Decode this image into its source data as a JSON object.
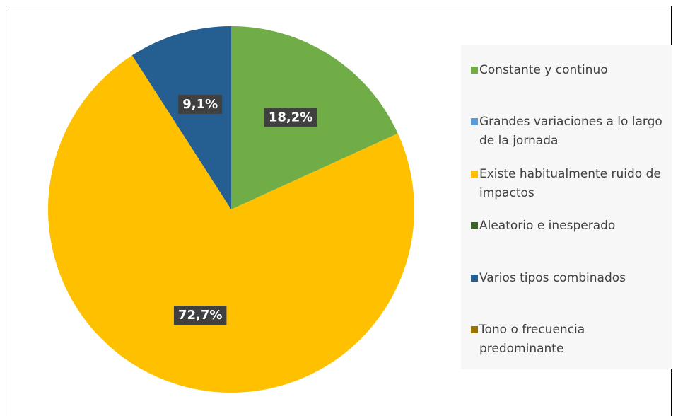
{
  "chart_data": {
    "type": "pie",
    "categories": [
      "Constante y continuo",
      "Grandes variaciones a lo largo de la jornada",
      "Existe habitualmente ruido de impactos",
      "Aleatorio e inesperado",
      "Varios tipos combinados",
      "Tono o frecuencia predominante"
    ],
    "values": [
      18.2,
      0,
      72.7,
      0,
      9.1,
      0
    ],
    "value_labels": [
      "18,2%",
      null,
      "72,7%",
      null,
      "9,1%",
      null
    ],
    "colors": [
      "#70ad47",
      "#5b9bd5",
      "#ffc000",
      "#3b6424",
      "#255e91",
      "#997300"
    ],
    "legend": "right"
  }
}
